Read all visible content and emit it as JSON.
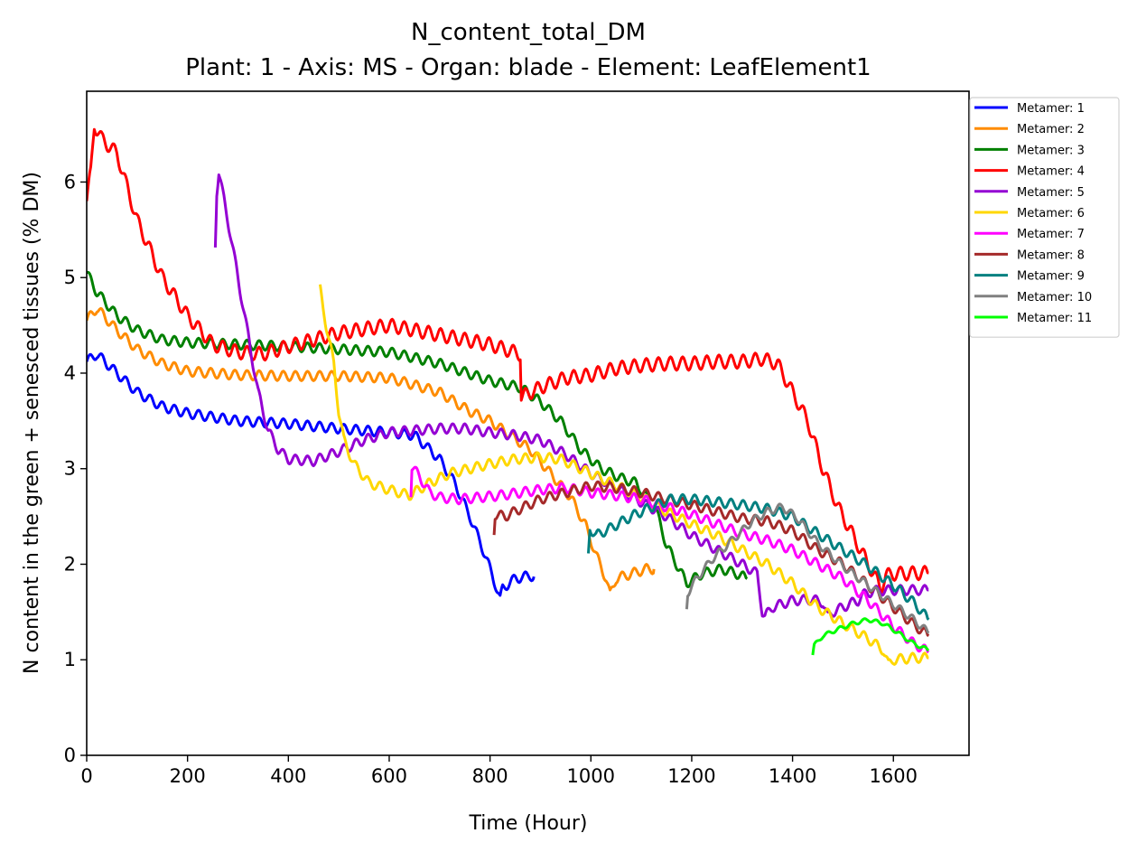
{
  "chart_data": {
    "type": "line",
    "title": "N_content_total_DM",
    "subtitle": "Plant: 1 - Axis: MS - Organ: blade - Element: LeafElement1",
    "xlabel": "Time (Hour)",
    "ylabel": "N content in the green + senesced tissues (% DM)",
    "xlim": [
      0,
      1750
    ],
    "ylim": [
      0,
      6.95
    ],
    "xticks": [
      0,
      200,
      400,
      600,
      800,
      1000,
      1200,
      1400,
      1600
    ],
    "yticks": [
      0,
      1,
      2,
      3,
      4,
      5,
      6
    ],
    "grid": false,
    "legend_position": "outside-top-right",
    "series": [
      {
        "name": "Metamer: 1",
        "color": "#0000ff",
        "wave": 0.05,
        "points": [
          [
            0,
            4.12
          ],
          [
            20,
            4.2
          ],
          [
            60,
            4.0
          ],
          [
            100,
            3.8
          ],
          [
            150,
            3.65
          ],
          [
            200,
            3.58
          ],
          [
            300,
            3.5
          ],
          [
            400,
            3.47
          ],
          [
            500,
            3.42
          ],
          [
            600,
            3.38
          ],
          [
            650,
            3.35
          ],
          [
            700,
            3.1
          ],
          [
            730,
            2.85
          ],
          [
            760,
            2.5
          ],
          [
            790,
            2.1
          ],
          [
            810,
            1.8
          ],
          [
            820,
            1.63
          ],
          [
            825,
            1.75
          ],
          [
            850,
            1.85
          ],
          [
            880,
            1.88
          ],
          [
            887,
            1.87
          ]
        ]
      },
      {
        "name": "Metamer: 2",
        "color": "#ff8c00",
        "wave": 0.05,
        "points": [
          [
            0,
            4.55
          ],
          [
            20,
            4.68
          ],
          [
            60,
            4.45
          ],
          [
            100,
            4.25
          ],
          [
            150,
            4.1
          ],
          [
            200,
            4.02
          ],
          [
            300,
            3.98
          ],
          [
            400,
            3.97
          ],
          [
            500,
            3.97
          ],
          [
            600,
            3.95
          ],
          [
            700,
            3.8
          ],
          [
            760,
            3.6
          ],
          [
            800,
            3.5
          ],
          [
            840,
            3.35
          ],
          [
            880,
            3.2
          ],
          [
            920,
            2.95
          ],
          [
            960,
            2.7
          ],
          [
            990,
            2.4
          ],
          [
            1010,
            2.1
          ],
          [
            1030,
            1.85
          ],
          [
            1038,
            1.68
          ],
          [
            1050,
            1.85
          ],
          [
            1080,
            1.9
          ],
          [
            1110,
            1.95
          ],
          [
            1125,
            1.95
          ]
        ]
      },
      {
        "name": "Metamer: 3",
        "color": "#008000",
        "wave": 0.05,
        "points": [
          [
            0,
            5.05
          ],
          [
            20,
            4.85
          ],
          [
            60,
            4.6
          ],
          [
            100,
            4.45
          ],
          [
            150,
            4.35
          ],
          [
            200,
            4.32
          ],
          [
            300,
            4.3
          ],
          [
            400,
            4.28
          ],
          [
            500,
            4.25
          ],
          [
            600,
            4.22
          ],
          [
            700,
            4.1
          ],
          [
            800,
            3.92
          ],
          [
            860,
            3.85
          ],
          [
            900,
            3.7
          ],
          [
            940,
            3.5
          ],
          [
            980,
            3.2
          ],
          [
            1020,
            3.0
          ],
          [
            1060,
            2.9
          ],
          [
            1090,
            2.85
          ],
          [
            1110,
            2.7
          ],
          [
            1130,
            2.55
          ],
          [
            1150,
            2.2
          ],
          [
            1170,
            2.0
          ],
          [
            1190,
            1.8
          ],
          [
            1220,
            1.9
          ],
          [
            1260,
            1.95
          ],
          [
            1290,
            1.9
          ],
          [
            1310,
            1.85
          ]
        ]
      },
      {
        "name": "Metamer: 4",
        "color": "#ff0000",
        "wave": 0.07,
        "points": [
          [
            0,
            5.8
          ],
          [
            8,
            6.1
          ],
          [
            15,
            6.6
          ],
          [
            30,
            6.45
          ],
          [
            60,
            6.3
          ],
          [
            100,
            5.6
          ],
          [
            150,
            5.0
          ],
          [
            200,
            4.6
          ],
          [
            250,
            4.3
          ],
          [
            300,
            4.22
          ],
          [
            350,
            4.2
          ],
          [
            400,
            4.28
          ],
          [
            450,
            4.35
          ],
          [
            500,
            4.42
          ],
          [
            560,
            4.47
          ],
          [
            600,
            4.5
          ],
          [
            650,
            4.45
          ],
          [
            700,
            4.4
          ],
          [
            750,
            4.35
          ],
          [
            800,
            4.3
          ],
          [
            860,
            4.2
          ],
          [
            862,
            3.75
          ],
          [
            900,
            3.85
          ],
          [
            950,
            3.95
          ],
          [
            1000,
            3.98
          ],
          [
            1050,
            4.05
          ],
          [
            1100,
            4.08
          ],
          [
            1150,
            4.1
          ],
          [
            1200,
            4.1
          ],
          [
            1250,
            4.12
          ],
          [
            1300,
            4.12
          ],
          [
            1340,
            4.15
          ],
          [
            1370,
            4.1
          ],
          [
            1400,
            3.8
          ],
          [
            1430,
            3.5
          ],
          [
            1460,
            3.0
          ],
          [
            1490,
            2.6
          ],
          [
            1520,
            2.3
          ],
          [
            1550,
            2.0
          ],
          [
            1575,
            1.75
          ],
          [
            1585,
            1.88
          ],
          [
            1600,
            1.9
          ],
          [
            1670,
            1.91
          ]
        ]
      },
      {
        "name": "Metamer: 5",
        "color": "#9400d3",
        "wave": 0.05,
        "points": [
          [
            255,
            5.35
          ],
          [
            258,
            5.9
          ],
          [
            262,
            6.1
          ],
          [
            280,
            5.6
          ],
          [
            300,
            5.0
          ],
          [
            320,
            4.4
          ],
          [
            340,
            3.8
          ],
          [
            360,
            3.4
          ],
          [
            380,
            3.2
          ],
          [
            400,
            3.1
          ],
          [
            450,
            3.08
          ],
          [
            500,
            3.18
          ],
          [
            550,
            3.3
          ],
          [
            600,
            3.38
          ],
          [
            650,
            3.4
          ],
          [
            700,
            3.42
          ],
          [
            750,
            3.42
          ],
          [
            800,
            3.38
          ],
          [
            850,
            3.35
          ],
          [
            900,
            3.3
          ],
          [
            950,
            3.15
          ],
          [
            1000,
            2.95
          ],
          [
            1050,
            2.8
          ],
          [
            1100,
            2.65
          ],
          [
            1150,
            2.5
          ],
          [
            1200,
            2.3
          ],
          [
            1250,
            2.15
          ],
          [
            1300,
            2.0
          ],
          [
            1330,
            1.9
          ],
          [
            1340,
            1.5
          ],
          [
            1345,
            1.45
          ],
          [
            1360,
            1.55
          ],
          [
            1400,
            1.62
          ],
          [
            1440,
            1.63
          ],
          [
            1460,
            1.6
          ],
          [
            1470,
            1.45
          ],
          [
            1480,
            1.5
          ],
          [
            1500,
            1.55
          ],
          [
            1520,
            1.6
          ],
          [
            1530,
            1.62
          ],
          [
            1540,
            1.68
          ],
          [
            1560,
            1.72
          ],
          [
            1600,
            1.73
          ],
          [
            1670,
            1.73
          ]
        ]
      },
      {
        "name": "Metamer: 6",
        "color": "#ffd700",
        "wave": 0.05,
        "points": [
          [
            463,
            4.88
          ],
          [
            475,
            4.5
          ],
          [
            490,
            4.1
          ],
          [
            500,
            3.6
          ],
          [
            510,
            3.3
          ],
          [
            530,
            3.05
          ],
          [
            560,
            2.85
          ],
          [
            600,
            2.78
          ],
          [
            640,
            2.72
          ],
          [
            680,
            2.85
          ],
          [
            720,
            2.95
          ],
          [
            760,
            3.0
          ],
          [
            800,
            3.05
          ],
          [
            850,
            3.1
          ],
          [
            900,
            3.12
          ],
          [
            940,
            3.1
          ],
          [
            980,
            3.0
          ],
          [
            1020,
            2.9
          ],
          [
            1060,
            2.8
          ],
          [
            1100,
            2.7
          ],
          [
            1150,
            2.55
          ],
          [
            1200,
            2.42
          ],
          [
            1250,
            2.3
          ],
          [
            1300,
            2.15
          ],
          [
            1350,
            2.0
          ],
          [
            1400,
            1.8
          ],
          [
            1450,
            1.55
          ],
          [
            1500,
            1.38
          ],
          [
            1550,
            1.22
          ],
          [
            1580,
            1.1
          ],
          [
            1590,
            0.95
          ],
          [
            1600,
            1.0
          ],
          [
            1640,
            1.02
          ],
          [
            1670,
            1.02
          ]
        ]
      },
      {
        "name": "Metamer: 7",
        "color": "#ff00ff",
        "wave": 0.05,
        "points": [
          [
            643,
            2.75
          ],
          [
            645,
            3.02
          ],
          [
            660,
            2.92
          ],
          [
            680,
            2.75
          ],
          [
            700,
            2.7
          ],
          [
            740,
            2.68
          ],
          [
            780,
            2.7
          ],
          [
            820,
            2.72
          ],
          [
            860,
            2.75
          ],
          [
            900,
            2.78
          ],
          [
            950,
            2.8
          ],
          [
            1000,
            2.75
          ],
          [
            1050,
            2.72
          ],
          [
            1100,
            2.68
          ],
          [
            1150,
            2.6
          ],
          [
            1200,
            2.52
          ],
          [
            1250,
            2.42
          ],
          [
            1300,
            2.32
          ],
          [
            1350,
            2.25
          ],
          [
            1400,
            2.15
          ],
          [
            1450,
            2.0
          ],
          [
            1500,
            1.85
          ],
          [
            1550,
            1.62
          ],
          [
            1600,
            1.35
          ],
          [
            1640,
            1.17
          ],
          [
            1670,
            1.08
          ]
        ]
      },
      {
        "name": "Metamer: 8",
        "color": "#a52a2a",
        "wave": 0.05,
        "points": [
          [
            808,
            2.35
          ],
          [
            810,
            2.52
          ],
          [
            830,
            2.5
          ],
          [
            860,
            2.58
          ],
          [
            900,
            2.68
          ],
          [
            950,
            2.75
          ],
          [
            1000,
            2.82
          ],
          [
            1050,
            2.8
          ],
          [
            1100,
            2.75
          ],
          [
            1150,
            2.68
          ],
          [
            1200,
            2.62
          ],
          [
            1250,
            2.55
          ],
          [
            1300,
            2.48
          ],
          [
            1350,
            2.45
          ],
          [
            1400,
            2.35
          ],
          [
            1450,
            2.15
          ],
          [
            1500,
            2.0
          ],
          [
            1550,
            1.78
          ],
          [
            1600,
            1.55
          ],
          [
            1640,
            1.37
          ],
          [
            1670,
            1.25
          ]
        ]
      },
      {
        "name": "Metamer: 9",
        "color": "#008080",
        "wave": 0.05,
        "points": [
          [
            995,
            2.1
          ],
          [
            998,
            2.38
          ],
          [
            1010,
            2.3
          ],
          [
            1040,
            2.38
          ],
          [
            1080,
            2.5
          ],
          [
            1120,
            2.6
          ],
          [
            1160,
            2.68
          ],
          [
            1200,
            2.68
          ],
          [
            1250,
            2.65
          ],
          [
            1300,
            2.62
          ],
          [
            1350,
            2.58
          ],
          [
            1400,
            2.5
          ],
          [
            1450,
            2.32
          ],
          [
            1500,
            2.15
          ],
          [
            1550,
            1.98
          ],
          [
            1600,
            1.78
          ],
          [
            1640,
            1.6
          ],
          [
            1670,
            1.42
          ]
        ]
      },
      {
        "name": "Metamer: 10",
        "color": "#808080",
        "wave": 0.04,
        "points": [
          [
            1190,
            1.55
          ],
          [
            1192,
            1.7
          ],
          [
            1210,
            1.85
          ],
          [
            1240,
            2.05
          ],
          [
            1280,
            2.25
          ],
          [
            1320,
            2.45
          ],
          [
            1350,
            2.55
          ],
          [
            1380,
            2.6
          ],
          [
            1410,
            2.48
          ],
          [
            1450,
            2.22
          ],
          [
            1500,
            1.98
          ],
          [
            1550,
            1.78
          ],
          [
            1600,
            1.58
          ],
          [
            1640,
            1.42
          ],
          [
            1670,
            1.28
          ]
        ]
      },
      {
        "name": "Metamer: 11",
        "color": "#00ff00",
        "wave": 0.02,
        "points": [
          [
            1440,
            1.05
          ],
          [
            1443,
            1.15
          ],
          [
            1460,
            1.25
          ],
          [
            1490,
            1.32
          ],
          [
            1520,
            1.38
          ],
          [
            1550,
            1.42
          ],
          [
            1580,
            1.38
          ],
          [
            1610,
            1.28
          ],
          [
            1640,
            1.17
          ],
          [
            1670,
            1.1
          ]
        ]
      }
    ]
  }
}
